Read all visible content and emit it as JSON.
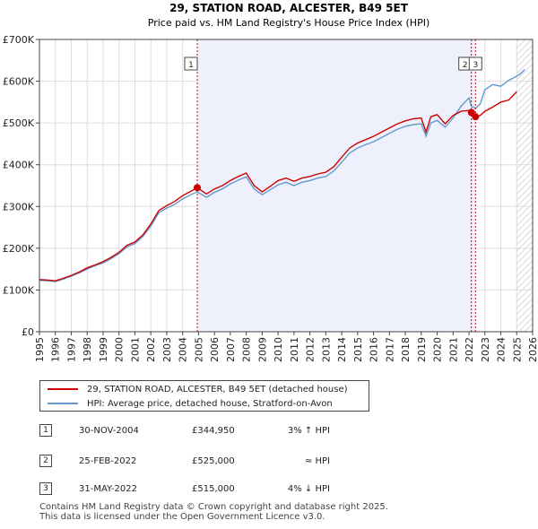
{
  "chart_data": {
    "type": "line",
    "title": "29, STATION ROAD, ALCESTER, B49 5ET",
    "subtitle": "Price paid vs. HM Land Registry's House Price Index (HPI)",
    "xlabel": "",
    "ylabel": "",
    "xlim": [
      1995,
      2026
    ],
    "ylim": [
      0,
      700000
    ],
    "x_ticks": [
      "1995",
      "1996",
      "1997",
      "1998",
      "1999",
      "2000",
      "2001",
      "2002",
      "2003",
      "2004",
      "2005",
      "2006",
      "2007",
      "2008",
      "2009",
      "2010",
      "2011",
      "2012",
      "2013",
      "2014",
      "2015",
      "2016",
      "2017",
      "2018",
      "2019",
      "2020",
      "2021",
      "2022",
      "2023",
      "2024",
      "2025",
      "2026"
    ],
    "y_ticks": [
      {
        "value": 0,
        "label": "£0"
      },
      {
        "value": 100000,
        "label": "£100K"
      },
      {
        "value": 200000,
        "label": "£200K"
      },
      {
        "value": 300000,
        "label": "£300K"
      },
      {
        "value": 400000,
        "label": "£400K"
      },
      {
        "value": 500000,
        "label": "£500K"
      },
      {
        "value": 600000,
        "label": "£600K"
      },
      {
        "value": 700000,
        "label": "£700K"
      }
    ],
    "grid": true,
    "forecast_from": 2025.0,
    "series": [
      {
        "name": "29, STATION ROAD, ALCESTER, B49 5ET (detached house)",
        "color": "#cc0000",
        "x": [
          1995.0,
          1995.5,
          1996.0,
          1996.5,
          1997.0,
          1997.5,
          1998.0,
          1998.5,
          1999.0,
          1999.5,
          2000.0,
          2000.5,
          2001.0,
          2001.5,
          2002.0,
          2002.5,
          2003.0,
          2003.5,
          2004.0,
          2004.5,
          2004.92,
          2005.5,
          2006.0,
          2006.5,
          2007.0,
          2007.5,
          2008.0,
          2008.5,
          2009.0,
          2009.5,
          2010.0,
          2010.5,
          2011.0,
          2011.5,
          2012.0,
          2012.5,
          2013.0,
          2013.5,
          2014.0,
          2014.5,
          2015.0,
          2015.5,
          2016.0,
          2016.5,
          2017.0,
          2017.5,
          2018.0,
          2018.5,
          2019.0,
          2019.3,
          2019.6,
          2020.0,
          2020.5,
          2021.0,
          2021.5,
          2022.0,
          2022.15,
          2022.41,
          2022.7,
          2023.0,
          2023.5,
          2024.0,
          2024.5,
          2025.0
        ],
        "y": [
          125000,
          124000,
          122000,
          128000,
          135000,
          143000,
          153000,
          160000,
          168000,
          178000,
          190000,
          207000,
          215000,
          232000,
          258000,
          290000,
          302000,
          312000,
          326000,
          336000,
          344950,
          330000,
          342000,
          350000,
          362000,
          372000,
          380000,
          350000,
          335000,
          348000,
          362000,
          368000,
          360000,
          368000,
          372000,
          378000,
          382000,
          395000,
          418000,
          440000,
          452000,
          460000,
          468000,
          478000,
          488000,
          498000,
          505000,
          510000,
          512000,
          478000,
          515000,
          520000,
          498000,
          518000,
          528000,
          530000,
          525000,
          515000,
          518000,
          528000,
          538000,
          550000,
          555000,
          575000
        ]
      },
      {
        "name": "HPI: Average price, detached house, Stratford-on-Avon",
        "color": "#6699cc",
        "x": [
          1995.0,
          1995.5,
          1996.0,
          1996.5,
          1997.0,
          1997.5,
          1998.0,
          1998.5,
          1999.0,
          1999.5,
          2000.0,
          2000.5,
          2001.0,
          2001.5,
          2002.0,
          2002.5,
          2003.0,
          2003.5,
          2004.0,
          2004.5,
          2004.92,
          2005.5,
          2006.0,
          2006.5,
          2007.0,
          2007.5,
          2008.0,
          2008.5,
          2009.0,
          2009.5,
          2010.0,
          2010.5,
          2011.0,
          2011.5,
          2012.0,
          2012.5,
          2013.0,
          2013.5,
          2014.0,
          2014.5,
          2015.0,
          2015.5,
          2016.0,
          2016.5,
          2017.0,
          2017.5,
          2018.0,
          2018.5,
          2019.0,
          2019.3,
          2019.6,
          2020.0,
          2020.5,
          2021.0,
          2021.5,
          2022.0,
          2022.15,
          2022.41,
          2022.7,
          2023.0,
          2023.5,
          2024.0,
          2024.5,
          2025.0,
          2025.3,
          2025.5
        ],
        "y": [
          123000,
          122000,
          120000,
          126000,
          133000,
          141000,
          150000,
          158000,
          165000,
          175000,
          187000,
          203000,
          211000,
          228000,
          253000,
          285000,
          296000,
          305000,
          318000,
          328000,
          335000,
          322000,
          334000,
          342000,
          354000,
          363000,
          371000,
          342000,
          328000,
          340000,
          352000,
          358000,
          350000,
          358000,
          362000,
          368000,
          372000,
          385000,
          406000,
          428000,
          440000,
          448000,
          455000,
          465000,
          475000,
          485000,
          492000,
          496000,
          498000,
          468000,
          500000,
          506000,
          490000,
          512000,
          540000,
          560000,
          540000,
          535000,
          545000,
          580000,
          592000,
          588000,
          602000,
          612000,
          620000,
          628000
        ]
      }
    ],
    "sales": [
      {
        "label": "1",
        "x": 2004.92,
        "y": 344950
      },
      {
        "label": "2",
        "x": 2022.15,
        "y": 525000
      },
      {
        "label": "3",
        "x": 2022.41,
        "y": 515000
      }
    ]
  },
  "legend": {
    "property": "29, STATION ROAD, ALCESTER, B49 5ET (detached house)",
    "hpi": "HPI: Average price, detached house, Stratford-on-Avon",
    "property_color": "#cc0000",
    "hpi_color": "#6699cc"
  },
  "transactions": [
    {
      "label": "1",
      "date": "30-NOV-2004",
      "price": "£344,950",
      "hpi": "3% ↑ HPI"
    },
    {
      "label": "2",
      "date": "25-FEB-2022",
      "price": "£525,000",
      "hpi": "≈ HPI"
    },
    {
      "label": "3",
      "date": "31-MAY-2022",
      "price": "£515,000",
      "hpi": "4% ↓ HPI"
    }
  ],
  "footer": {
    "line1": "Contains HM Land Registry data © Crown copyright and database right 2025.",
    "line2": "This data is licensed under the Open Government Licence v3.0."
  }
}
